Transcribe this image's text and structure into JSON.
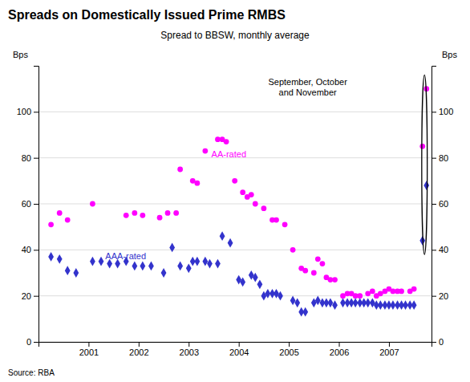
{
  "chart_data": {
    "type": "scatter",
    "title": "Spreads on Domestically Issued Prime RMBS",
    "subtitle": "Spread to BBSW, monthly average",
    "ylabel": "Bps",
    "y2label": "Bps",
    "source": "Source: RBA",
    "annotation": "September, October\nand November",
    "xlim": [
      2000.0,
      2007.85
    ],
    "xticks": [
      2001,
      2002,
      2003,
      2004,
      2005,
      2006,
      2007
    ],
    "ylim": [
      0,
      120
    ],
    "yticks": [
      0,
      20,
      40,
      60,
      80,
      100
    ],
    "y2lim": [
      0,
      120
    ],
    "y2ticks": [
      0,
      20,
      40,
      60,
      80,
      100
    ],
    "grid": true,
    "series": [
      {
        "name": "AA-rated",
        "color": "#FF00FF",
        "marker": "circle",
        "x": [
          2000.25,
          2000.42,
          2000.58,
          2001.08,
          2001.75,
          2001.92,
          2002.08,
          2002.42,
          2002.58,
          2002.75,
          2002.83,
          2003.08,
          2003.17,
          2003.33,
          2003.58,
          2003.67,
          2003.75,
          2003.92,
          2004.08,
          2004.17,
          2004.25,
          2004.33,
          2004.5,
          2004.67,
          2004.75,
          2004.92,
          2005.08,
          2005.25,
          2005.33,
          2005.5,
          2005.58,
          2005.67,
          2005.75,
          2005.83,
          2005.92,
          2006.08,
          2006.17,
          2006.25,
          2006.33,
          2006.42,
          2006.58,
          2006.67,
          2006.75,
          2006.83,
          2006.92,
          2007.0,
          2007.08,
          2007.17,
          2007.25,
          2007.42,
          2007.5,
          2007.67,
          2007.75
        ],
        "values": [
          51,
          56,
          53,
          60,
          55,
          56,
          55,
          54,
          56,
          56,
          75,
          70,
          69,
          83,
          88,
          88,
          87,
          70,
          65,
          63,
          64,
          60,
          58,
          53,
          53,
          51,
          40,
          32,
          31,
          30,
          36,
          34,
          28,
          27,
          27,
          20,
          21,
          21,
          20,
          20,
          21,
          22,
          20,
          21,
          22,
          23,
          22,
          22,
          22,
          22,
          23,
          85,
          110
        ]
      },
      {
        "name": "AAA-rated",
        "color": "#3333CC",
        "marker": "diamond",
        "x": [
          2000.25,
          2000.42,
          2000.58,
          2000.75,
          2001.08,
          2001.25,
          2001.42,
          2001.58,
          2001.75,
          2001.92,
          2002.08,
          2002.25,
          2002.5,
          2002.67,
          2002.83,
          2003.0,
          2003.08,
          2003.17,
          2003.33,
          2003.42,
          2003.58,
          2003.67,
          2003.83,
          2004.0,
          2004.08,
          2004.25,
          2004.33,
          2004.42,
          2004.5,
          2004.58,
          2004.67,
          2004.75,
          2004.83,
          2005.08,
          2005.17,
          2005.25,
          2005.33,
          2005.5,
          2005.58,
          2005.67,
          2005.75,
          2005.83,
          2005.92,
          2006.08,
          2006.17,
          2006.25,
          2006.33,
          2006.42,
          2006.5,
          2006.58,
          2006.67,
          2006.75,
          2006.83,
          2006.92,
          2007.0,
          2007.08,
          2007.17,
          2007.25,
          2007.33,
          2007.42,
          2007.5,
          2007.67,
          2007.75
        ],
        "values": [
          37,
          36,
          31,
          30,
          35,
          35,
          34,
          34,
          35,
          33,
          33,
          33,
          30,
          41,
          33,
          32,
          35,
          35,
          35,
          34,
          34,
          46,
          43,
          27,
          26,
          29,
          28,
          25,
          20,
          21,
          21,
          21,
          20,
          18,
          17,
          13,
          13,
          17,
          18,
          17,
          17,
          17,
          16,
          17,
          17,
          17,
          17,
          17,
          17,
          17,
          17,
          16,
          16,
          16,
          16,
          16,
          16,
          16,
          16,
          16,
          16,
          44,
          68
        ]
      }
    ],
    "ellipse": {
      "x": 2007.71,
      "y": 77,
      "width": 0.11,
      "height": 78
    }
  }
}
